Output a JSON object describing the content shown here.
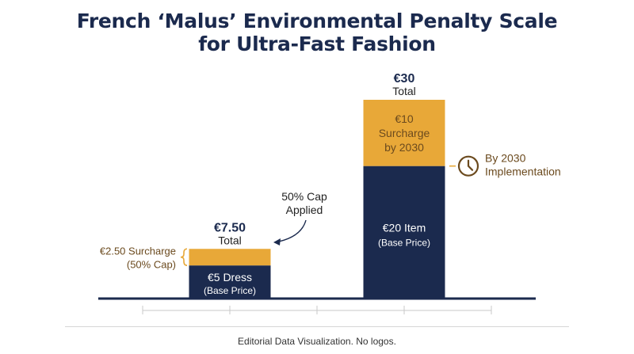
{
  "title_lines": [
    "French ‘Malus’ Environmental Penalty Scale",
    "for Ultra-Fast Fashion"
  ],
  "footer": "Editorial Data Visualization. No logos.",
  "colors": {
    "base": "#1b2a4e",
    "surcharge": "#e8a838",
    "annotation": "#6b4a1e",
    "axis": "#1b2a4e",
    "title": "#1b2a4e"
  },
  "chart_data": {
    "type": "bar",
    "stacked": true,
    "grid": false,
    "ylim": [
      0,
      30
    ],
    "categories": [
      "€5 Dress",
      "€20 Item"
    ],
    "series": [
      {
        "key": "base",
        "values": [
          5,
          20
        ]
      },
      {
        "key": "surcharge",
        "values": [
          2.5,
          10
        ]
      }
    ],
    "totals": [
      {
        "value": "€7.50",
        "label": "Total"
      },
      {
        "value": "€30",
        "label": "Total"
      }
    ],
    "segment_labels": {
      "base": [
        [
          "€5 Dress",
          "(Base Price)"
        ],
        [
          "€20 Item",
          "(Base Price)"
        ]
      ],
      "surcharge": [
        [],
        [
          "€10",
          "Surcharge",
          "by 2030"
        ]
      ]
    },
    "annotations": {
      "surcharge_brace": [
        "€2.50 Surcharge",
        "(50% Cap)"
      ],
      "cap_callout": [
        "50% Cap",
        "Applied"
      ],
      "timeline": [
        "By 2030",
        "Implementation"
      ],
      "timeline_icon": "clock-icon"
    }
  }
}
